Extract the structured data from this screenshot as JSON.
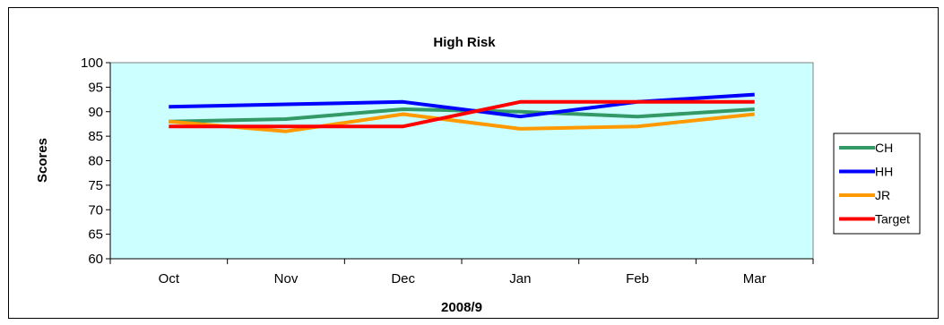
{
  "chart_data": {
    "type": "line",
    "title": "High Risk",
    "xlabel": "2008/9",
    "ylabel": "Scores",
    "categories": [
      "Oct",
      "Nov",
      "Dec",
      "Jan",
      "Feb",
      "Mar"
    ],
    "ylim": [
      60,
      100
    ],
    "yticks": [
      60,
      65,
      70,
      75,
      80,
      85,
      90,
      95,
      100
    ],
    "grid": false,
    "legend_position": "right",
    "plot_background": "#ccffff",
    "series": [
      {
        "name": "CH",
        "color": "#339966",
        "values": [
          88,
          88.5,
          90.5,
          90,
          89,
          90.5
        ]
      },
      {
        "name": "HH",
        "color": "#0000ff",
        "values": [
          91,
          91.5,
          92,
          89,
          92,
          93.5
        ]
      },
      {
        "name": "JR",
        "color": "#ff9900",
        "values": [
          88,
          86,
          89.5,
          86.5,
          87,
          89.5
        ]
      },
      {
        "name": "Target",
        "color": "#ff0000",
        "values": [
          87,
          87,
          87,
          92,
          92,
          92
        ]
      }
    ]
  }
}
